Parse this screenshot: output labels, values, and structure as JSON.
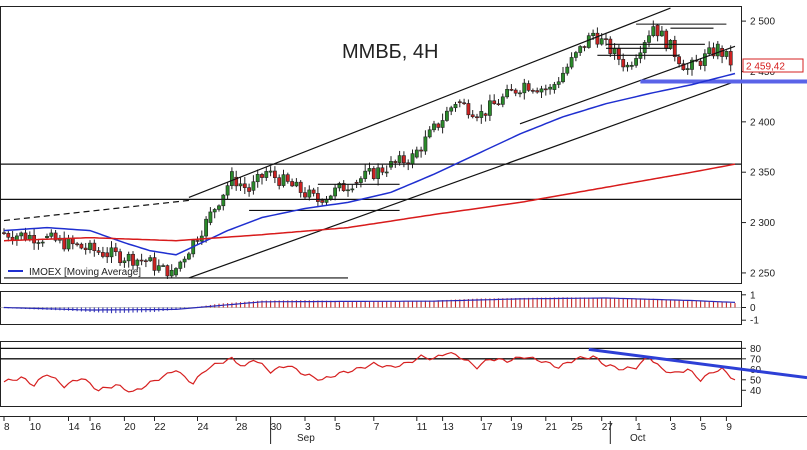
{
  "chart_data": [
    {
      "type": "candlestick",
      "title": "ММВБ, 4H",
      "y_ticks": [
        2250,
        2300,
        2350,
        2400,
        2450,
        2500
      ],
      "y_tick_labels": [
        "2 250",
        "2 300",
        "2 350",
        "2 400",
        "2 450",
        "2 500"
      ],
      "ylim": [
        2240,
        2515
      ],
      "last_price": 2459.42,
      "last_price_label": "2 459,42",
      "legend": {
        "placement": "bottom-left",
        "entries": [
          "IMOEX [Moving Average]"
        ]
      },
      "x_tick_labels": [
        "8",
        "10",
        "14",
        "16",
        "20",
        "22",
        "24",
        "28",
        "30",
        "3",
        "5",
        "7",
        "11",
        "13",
        "17",
        "19",
        "21",
        "25",
        "27",
        "1",
        "3",
        "5",
        "9"
      ],
      "month_labels": [
        "Sep",
        "Oct"
      ],
      "ohlc_slices": [
        {
          "from": 0,
          "to": 10,
          "start": 2290,
          "end": 2285,
          "hi": 2312,
          "lo": 2262
        },
        {
          "from": 10,
          "to": 24,
          "start": 2285,
          "end": 2270,
          "hi": 2300,
          "lo": 2253
        },
        {
          "from": 24,
          "to": 34,
          "start": 2270,
          "end": 2262,
          "hi": 2292,
          "lo": 2253
        },
        {
          "from": 34,
          "to": 40,
          "start": 2262,
          "end": 2248,
          "hi": 2275,
          "lo": 2244
        },
        {
          "from": 40,
          "to": 48,
          "start": 2248,
          "end": 2300,
          "hi": 2318,
          "lo": 2246
        },
        {
          "from": 48,
          "to": 54,
          "start": 2300,
          "end": 2345,
          "hi": 2358,
          "lo": 2295
        },
        {
          "from": 54,
          "to": 58,
          "start": 2345,
          "end": 2332,
          "hi": 2352,
          "lo": 2322
        },
        {
          "from": 58,
          "to": 62,
          "start": 2332,
          "end": 2350,
          "hi": 2360,
          "lo": 2325
        },
        {
          "from": 62,
          "to": 74,
          "start": 2350,
          "end": 2322,
          "hi": 2356,
          "lo": 2313
        },
        {
          "from": 74,
          "to": 82,
          "start": 2322,
          "end": 2340,
          "hi": 2352,
          "lo": 2317
        },
        {
          "from": 82,
          "to": 90,
          "start": 2340,
          "end": 2355,
          "hi": 2372,
          "lo": 2330
        },
        {
          "from": 90,
          "to": 96,
          "start": 2355,
          "end": 2365,
          "hi": 2375,
          "lo": 2345
        },
        {
          "from": 96,
          "to": 106,
          "start": 2365,
          "end": 2420,
          "hi": 2435,
          "lo": 2355
        },
        {
          "from": 106,
          "to": 112,
          "start": 2420,
          "end": 2408,
          "hi": 2430,
          "lo": 2396
        },
        {
          "from": 112,
          "to": 122,
          "start": 2408,
          "end": 2438,
          "hi": 2448,
          "lo": 2400
        },
        {
          "from": 122,
          "to": 128,
          "start": 2438,
          "end": 2432,
          "hi": 2445,
          "lo": 2420
        },
        {
          "from": 128,
          "to": 138,
          "start": 2432,
          "end": 2488,
          "hi": 2500,
          "lo": 2428
        },
        {
          "from": 138,
          "to": 146,
          "start": 2488,
          "end": 2455,
          "hi": 2497,
          "lo": 2450
        },
        {
          "from": 146,
          "to": 152,
          "start": 2455,
          "end": 2496,
          "hi": 2505,
          "lo": 2450
        },
        {
          "from": 152,
          "to": 160,
          "start": 2496,
          "end": 2452,
          "hi": 2500,
          "lo": 2440
        },
        {
          "from": 160,
          "to": 167,
          "start": 2452,
          "end": 2473,
          "hi": 2482,
          "lo": 2440
        },
        {
          "from": 167,
          "to": 170,
          "start": 2473,
          "end": 2459,
          "hi": 2480,
          "lo": 2450
        }
      ],
      "moving_averages": [
        {
          "name": "IMOEX [Moving Average]",
          "color": "#1f2fd0",
          "anchors": [
            [
              0,
              2292
            ],
            [
              10,
              2295
            ],
            [
              20,
              2292
            ],
            [
              28,
              2280
            ],
            [
              34,
              2272
            ],
            [
              40,
              2268
            ],
            [
              46,
              2280
            ],
            [
              52,
              2292
            ],
            [
              60,
              2305
            ],
            [
              70,
              2314
            ],
            [
              80,
              2320
            ],
            [
              90,
              2330
            ],
            [
              100,
              2348
            ],
            [
              110,
              2368
            ],
            [
              120,
              2388
            ],
            [
              130,
              2405
            ],
            [
              140,
              2418
            ],
            [
              150,
              2428
            ],
            [
              160,
              2437
            ],
            [
              170,
              2448
            ]
          ]
        },
        {
          "color": "#d81b1b",
          "anchors": [
            [
              0,
              2282
            ],
            [
              20,
              2285
            ],
            [
              40,
              2282
            ],
            [
              60,
              2288
            ],
            [
              80,
              2295
            ],
            [
              100,
              2308
            ],
            [
              120,
              2320
            ],
            [
              140,
              2335
            ],
            [
              160,
              2350
            ],
            [
              170,
              2358
            ]
          ]
        }
      ],
      "horizontal_levels": [
        2358,
        2323
      ],
      "sloped_lines": [
        {
          "x1": 43,
          "y1": 2245,
          "x2": 170,
          "y2": 2440
        },
        {
          "x1": 43,
          "y1": 2325,
          "x2": 155,
          "y2": 2513
        },
        {
          "x1": 120,
          "y1": 2398,
          "x2": 170,
          "y2": 2475
        },
        {
          "x1": 0,
          "y1": 2302,
          "x2": 43,
          "y2": 2322,
          "dashed": true
        }
      ],
      "short_levels": [
        {
          "x1": 0,
          "x2": 80,
          "y": 2245
        },
        {
          "x1": 57,
          "x2": 92,
          "y": 2312
        },
        {
          "x1": 73,
          "x2": 92,
          "y": 2338
        },
        {
          "x1": 140,
          "x2": 155,
          "y": 2473
        },
        {
          "x1": 138,
          "x2": 157,
          "y": 2466
        },
        {
          "x1": 140,
          "x2": 163,
          "y": 2477
        },
        {
          "x1": 147,
          "x2": 168,
          "y": 2497
        },
        {
          "x1": 155,
          "x2": 165,
          "y": 2493
        }
      ],
      "blue_band": {
        "x1": 148,
        "x2": 180,
        "y": 2440
      }
    },
    {
      "type": "bar",
      "panel": "oscillator",
      "y_ticks": [
        -1,
        0,
        1
      ],
      "y_tick_labels": [
        "-1",
        "0",
        "1"
      ],
      "ylim": [
        -1.3,
        1.3
      ],
      "anchors": [
        [
          0,
          -0.05
        ],
        [
          15,
          -0.25
        ],
        [
          25,
          -0.45
        ],
        [
          35,
          -0.35
        ],
        [
          42,
          -0.1
        ],
        [
          50,
          0.3
        ],
        [
          60,
          0.55
        ],
        [
          70,
          0.58
        ],
        [
          80,
          0.5
        ],
        [
          90,
          0.48
        ],
        [
          100,
          0.55
        ],
        [
          110,
          0.7
        ],
        [
          120,
          0.75
        ],
        [
          130,
          0.8
        ],
        [
          140,
          0.78
        ],
        [
          150,
          0.7
        ],
        [
          160,
          0.55
        ],
        [
          170,
          0.35
        ]
      ],
      "signal_anchors": [
        [
          0,
          0.0
        ],
        [
          20,
          -0.2
        ],
        [
          40,
          -0.15
        ],
        [
          60,
          0.45
        ],
        [
          80,
          0.48
        ],
        [
          100,
          0.5
        ],
        [
          120,
          0.68
        ],
        [
          140,
          0.75
        ],
        [
          160,
          0.55
        ],
        [
          170,
          0.4
        ]
      ],
      "colors": {
        "positive": "#c62828",
        "negative": "#3a3ab8",
        "signal": "#2a2ab8"
      }
    },
    {
      "type": "line",
      "panel": "rsi",
      "y_ticks": [
        40,
        50,
        60,
        70,
        80
      ],
      "y_tick_labels": [
        "40",
        "50",
        "60",
        "70",
        "80"
      ],
      "ylim": [
        25,
        87
      ],
      "reference_levels": [
        80,
        70
      ],
      "anchors": [
        [
          0,
          48
        ],
        [
          4,
          52
        ],
        [
          7,
          45
        ],
        [
          10,
          56
        ],
        [
          14,
          44
        ],
        [
          18,
          52
        ],
        [
          22,
          40
        ],
        [
          26,
          45
        ],
        [
          30,
          38
        ],
        [
          34,
          47
        ],
        [
          38,
          55
        ],
        [
          40,
          60
        ],
        [
          42,
          52
        ],
        [
          44,
          47
        ],
        [
          47,
          60
        ],
        [
          50,
          66
        ],
        [
          53,
          70
        ],
        [
          56,
          62
        ],
        [
          58,
          70
        ],
        [
          62,
          58
        ],
        [
          66,
          64
        ],
        [
          70,
          55
        ],
        [
          74,
          50
        ],
        [
          78,
          56
        ],
        [
          82,
          60
        ],
        [
          86,
          65
        ],
        [
          90,
          62
        ],
        [
          94,
          66
        ],
        [
          97,
          72
        ],
        [
          100,
          70
        ],
        [
          103,
          76
        ],
        [
          106,
          72
        ],
        [
          110,
          62
        ],
        [
          113,
          70
        ],
        [
          117,
          68
        ],
        [
          121,
          72
        ],
        [
          125,
          68
        ],
        [
          129,
          62
        ],
        [
          133,
          70
        ],
        [
          137,
          72
        ],
        [
          140,
          64
        ],
        [
          144,
          60
        ],
        [
          147,
          62
        ],
        [
          150,
          72
        ],
        [
          153,
          60
        ],
        [
          156,
          56
        ],
        [
          159,
          60
        ],
        [
          162,
          50
        ],
        [
          165,
          58
        ],
        [
          167,
          60
        ],
        [
          170,
          50
        ]
      ],
      "trend_line": {
        "x1": 136,
        "y1": 79,
        "x2": 180,
        "y2": 52
      },
      "color": "#d62020"
    }
  ],
  "colors": {
    "axis": "#222222",
    "bull": "#2a8a2a",
    "bear": "#cc2222",
    "price_tag": "#d62020",
    "channel": "#111111",
    "band": "#5a63e8",
    "rsi_trend": "#2d3fd6",
    "rsi_line": "#d62020"
  }
}
